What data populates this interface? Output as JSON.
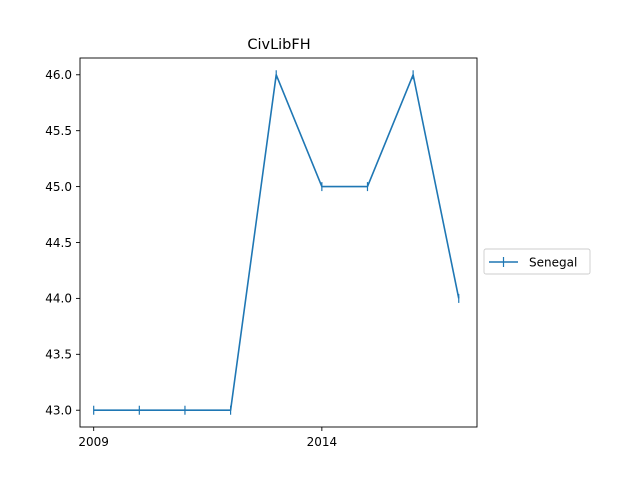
{
  "chart_data": {
    "type": "line",
    "title": "CivLibFH",
    "xlabel": "",
    "ylabel": "",
    "x": [
      2009,
      2010,
      2011,
      2012,
      2013,
      2014,
      2015,
      2016,
      2017
    ],
    "series": [
      {
        "name": "Senegal",
        "values": [
          43.0,
          43.0,
          43.0,
          43.0,
          46.0,
          45.0,
          45.0,
          46.0,
          44.0
        ],
        "color": "#1f77b4"
      }
    ],
    "xlim": [
      2008.7,
      2017.4
    ],
    "ylim": [
      42.85,
      46.15
    ],
    "x_ticks": [
      2009,
      2014
    ],
    "y_ticks": [
      43.0,
      43.5,
      44.0,
      44.5,
      45.0,
      45.5,
      46.0
    ],
    "y_tick_labels": [
      "43.0",
      "43.5",
      "44.0",
      "44.5",
      "45.0",
      "45.5",
      "46.0"
    ],
    "legend_position": "right",
    "grid": false,
    "marker": "|"
  }
}
